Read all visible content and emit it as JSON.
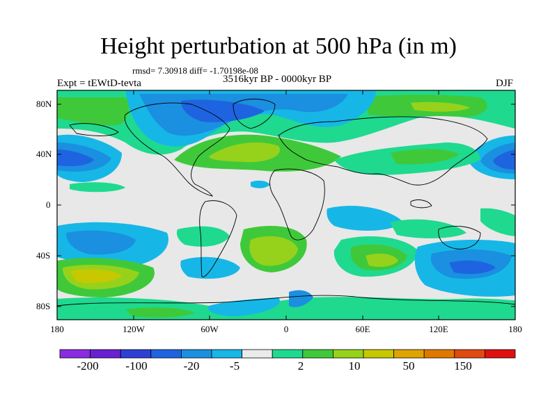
{
  "title": "Height perturbation at 500 hPa (in m)",
  "stats": "rmsd= 7.30918 diff= -1.70198e-08",
  "experiment": "Expt = tEWtD-tevta",
  "period": "3516kyr BP - 0000kyr BP",
  "season": "DJF",
  "map": {
    "lon_range": [
      -180,
      180
    ],
    "lat_range": [
      -90,
      90
    ],
    "lat_labels": [
      "80N",
      "40N",
      "0",
      "40S",
      "80S"
    ],
    "lat_values": [
      80,
      40,
      0,
      -40,
      -80
    ],
    "lon_labels": [
      "180",
      "120W",
      "60W",
      "0",
      "60E",
      "120E",
      "180"
    ],
    "lon_values": [
      -180,
      -120,
      -60,
      0,
      60,
      120,
      180
    ]
  },
  "colorbar": {
    "labels": [
      "-200",
      "-100",
      "-20",
      "-5",
      "2",
      "10",
      "50",
      "150"
    ],
    "colors": [
      "#8a2be2",
      "#6a1fd0",
      "#2f3fd6",
      "#1e64e0",
      "#1b8fe0",
      "#16b7e6",
      "#ebebeb",
      "#1fd98f",
      "#3fc93a",
      "#96d21c",
      "#c8c800",
      "#e0a400",
      "#e07800",
      "#e04a10",
      "#e01010"
    ]
  }
}
